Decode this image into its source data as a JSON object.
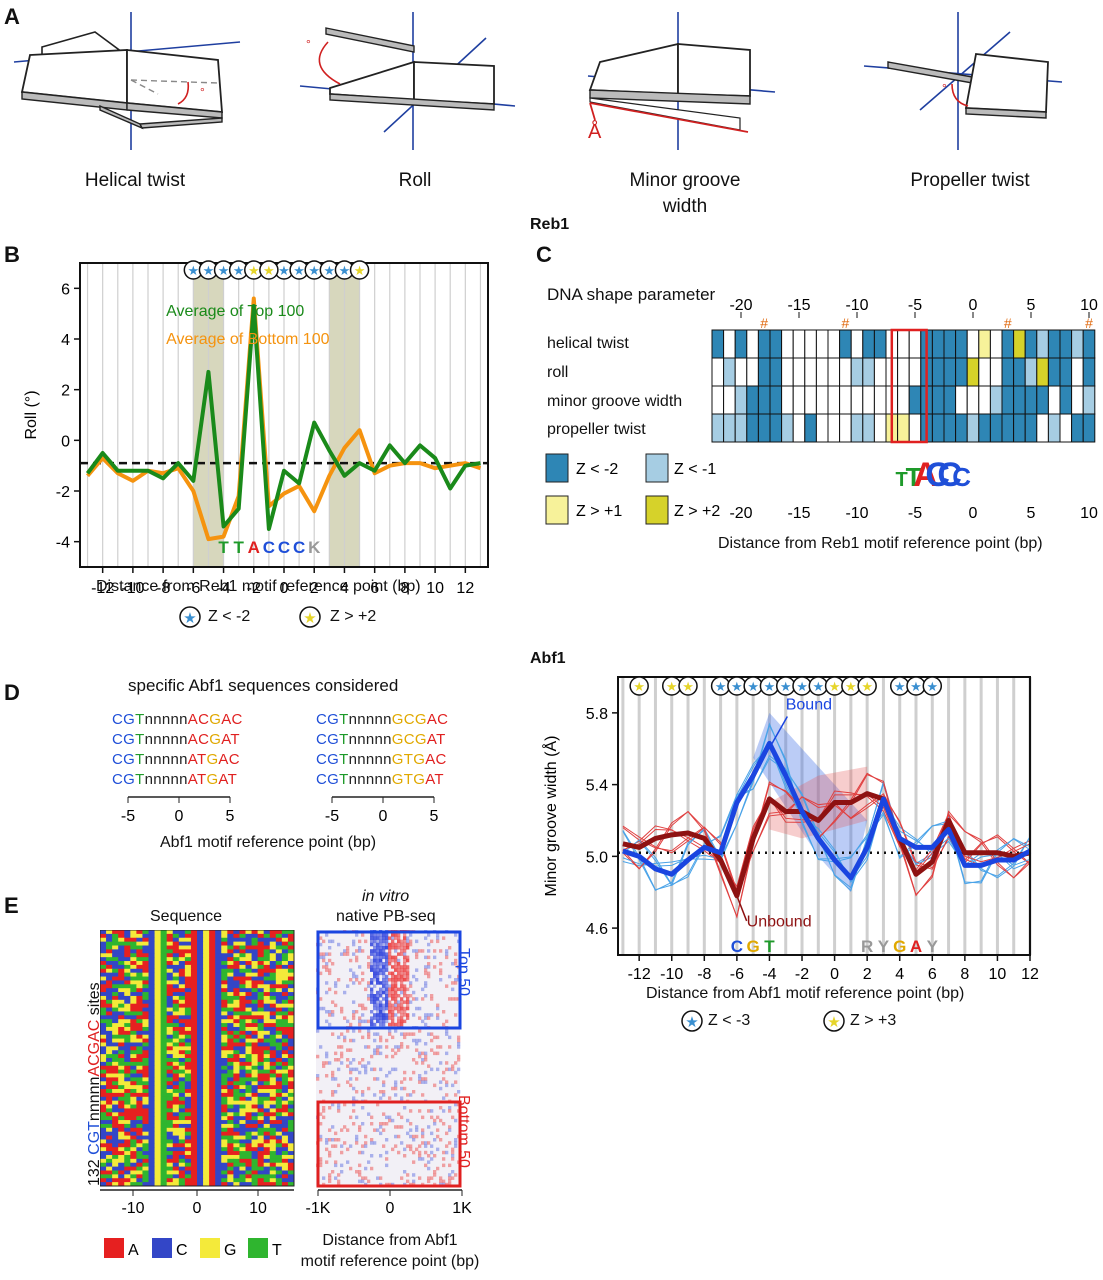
{
  "panels": {
    "A": "A",
    "B": "B",
    "C": "C",
    "D": "D",
    "E": "E"
  },
  "sections": {
    "reb1": "Reb1",
    "abf1": "Abf1"
  },
  "panelA": {
    "labels": [
      "Helical twist",
      "Roll",
      "Minor groove",
      "Propeller twist"
    ],
    "minor_groove_line2": "width",
    "degree_symbol": "°",
    "angstrom_symbol": "Å",
    "colors": {
      "axis": "#1f3fa0",
      "angle": "#d02020"
    }
  },
  "panelB": {
    "ylabel": "Roll (°)",
    "xlabel": "Distance from Reb1 motif reference point (bp)",
    "legend_top": "Average of Top 100",
    "legend_bottom": "Average of Bottom 100",
    "motif": [
      {
        "ch": "T",
        "color": "#1e9a2a"
      },
      {
        "ch": "T",
        "color": "#1e9a2a"
      },
      {
        "ch": "A",
        "color": "#e02020"
      },
      {
        "ch": "C",
        "color": "#1f4fd8"
      },
      {
        "ch": "C",
        "color": "#1f4fd8"
      },
      {
        "ch": "C",
        "color": "#1f4fd8"
      },
      {
        "ch": "K",
        "color": "#999999"
      }
    ],
    "key_low": "Z < -2",
    "key_high": "Z > +2",
    "colors": {
      "top": "#1a8a1a",
      "bottom": "#f5930f",
      "shade": "#d7d7bd"
    }
  },
  "panelC": {
    "title": "DNA shape parameter",
    "rows": [
      "helical twist",
      "roll",
      "minor groove width",
      "propeller twist"
    ],
    "xlabel": "Distance from Reb1 motif reference point (bp)",
    "hash": "#",
    "legend": [
      {
        "label": "Z < -2",
        "color": "#2e86b5"
      },
      {
        "label": "Z < -1",
        "color": "#a6cde3"
      },
      {
        "label": "Z > +1",
        "color": "#f7f29a"
      },
      {
        "label": "Z > +2",
        "color": "#d6d22a"
      }
    ],
    "logo": "TTACCC"
  },
  "panelD": {
    "title": "specific Abf1 sequences considered",
    "seq_left": [
      [
        [
          "CG",
          "c"
        ],
        [
          "T",
          "t"
        ],
        [
          "nnnnn",
          "n"
        ],
        [
          "AC",
          "a"
        ],
        [
          "G",
          "g"
        ],
        [
          "AC",
          "a"
        ]
      ],
      [
        [
          "CG",
          "c"
        ],
        [
          "T",
          "t"
        ],
        [
          "nnnnn",
          "n"
        ],
        [
          "AC",
          "a"
        ],
        [
          "G",
          "g"
        ],
        [
          "AT",
          "a"
        ]
      ],
      [
        [
          "CG",
          "c"
        ],
        [
          "T",
          "t"
        ],
        [
          "nnnnn",
          "n"
        ],
        [
          "AT",
          "a"
        ],
        [
          "G",
          "g"
        ],
        [
          "AC",
          "a"
        ]
      ],
      [
        [
          "CG",
          "c"
        ],
        [
          "T",
          "t"
        ],
        [
          "nnnnn",
          "n"
        ],
        [
          "AT",
          "a"
        ],
        [
          "G",
          "g"
        ],
        [
          "AT",
          "a"
        ]
      ]
    ],
    "seq_right": [
      [
        [
          "CG",
          "c"
        ],
        [
          "T",
          "t"
        ],
        [
          "nnnnn",
          "n"
        ],
        [
          "GC",
          "g"
        ],
        [
          "G",
          "g"
        ],
        [
          "AC",
          "a"
        ]
      ],
      [
        [
          "CG",
          "c"
        ],
        [
          "T",
          "t"
        ],
        [
          "nnnnn",
          "n"
        ],
        [
          "GC",
          "g"
        ],
        [
          "G",
          "g"
        ],
        [
          "AT",
          "a"
        ]
      ],
      [
        [
          "CG",
          "c"
        ],
        [
          "T",
          "t"
        ],
        [
          "nnnnn",
          "n"
        ],
        [
          "GT",
          "g"
        ],
        [
          "G",
          "g"
        ],
        [
          "AC",
          "a"
        ]
      ],
      [
        [
          "CG",
          "c"
        ],
        [
          "T",
          "t"
        ],
        [
          "nnnnn",
          "n"
        ],
        [
          "GT",
          "g"
        ],
        [
          "G",
          "g"
        ],
        [
          "AT",
          "a"
        ]
      ]
    ],
    "xlabel": "Abf1 motif reference point (bp)",
    "ticks": [
      "-5",
      "0",
      "5"
    ]
  },
  "panelDplot": {
    "ylabel": "Minor groove width (Å)",
    "xlabel": "Distance from Abf1 motif reference point (bp)",
    "bound": "Bound",
    "unbound": "Unbound",
    "key_low": "Z < -3",
    "key_high": "Z > +3",
    "motif_left": [
      {
        "ch": "C",
        "color": "#1f4fd8"
      },
      {
        "ch": "G",
        "color": "#e0a800"
      },
      {
        "ch": "T",
        "color": "#1e9a2a"
      }
    ],
    "motif_right": [
      {
        "ch": "R",
        "color": "#999999"
      },
      {
        "ch": "Y",
        "color": "#999999"
      },
      {
        "ch": "G",
        "color": "#e0a800"
      },
      {
        "ch": "A",
        "color": "#e02020"
      },
      {
        "ch": "Y",
        "color": "#999999"
      }
    ],
    "colors": {
      "bound": "#1a45e0",
      "unbound": "#8e1212"
    }
  },
  "panelE": {
    "seq_title": "Sequence",
    "invitro": "in vitro",
    "pbseq": "native PB-seq",
    "side_label_pre": "132 ",
    "side_label_cgt": "CGT",
    "side_label_n": "nnnnn",
    "side_label_acgac": "ACGAC",
    "side_label_post": " sites",
    "top50": "Top 50",
    "bottom50": "Bottom 50",
    "xticks_left": [
      "-10",
      "0",
      "10"
    ],
    "xticks_right": [
      "-1K",
      "0",
      "1K"
    ],
    "xlabel_1": "Distance from Abf1",
    "xlabel_2": "motif reference point (bp)",
    "legend": [
      {
        "label": "A",
        "color": "#e62020"
      },
      {
        "label": "C",
        "color": "#3346c7"
      },
      {
        "label": "G",
        "color": "#f4ea3a"
      },
      {
        "label": "T",
        "color": "#2fb52f"
      }
    ]
  },
  "chart_data": [
    {
      "type": "line",
      "x": [
        -13,
        -12,
        -11,
        -10,
        -9,
        -8,
        -7,
        -6,
        -5,
        -4,
        -3,
        -2,
        -1,
        0,
        1,
        2,
        3,
        4,
        5,
        6,
        7,
        8,
        9,
        10,
        11,
        12,
        13
      ],
      "series": [
        {
          "name": "Average of Top 100",
          "values": [
            -1.3,
            -0.5,
            -1.2,
            -1.2,
            -1.2,
            -1.5,
            -0.9,
            -1.6,
            2.7,
            -3.4,
            -2.7,
            5.3,
            -3.5,
            -1.2,
            -1.7,
            0.7,
            -0.4,
            -1.4,
            -0.9,
            -1.2,
            -0.2,
            -0.9,
            -0.2,
            -0.7,
            -1.9,
            -1.0,
            -0.9
          ]
        },
        {
          "name": "Average of Bottom 100",
          "values": [
            -1.4,
            -0.7,
            -1.3,
            -1.6,
            -1.2,
            -1.3,
            -1.1,
            -2.0,
            -3.9,
            -3.8,
            -2.2,
            5.6,
            -2.6,
            -2.1,
            -1.8,
            -2.8,
            -1.4,
            -0.3,
            0.4,
            -1.3,
            -1.0,
            -0.9,
            -0.9,
            -1.1,
            -1.0,
            -0.9,
            -1.1
          ]
        }
      ],
      "xlabel": "Distance from Reb1 motif reference point (bp)",
      "ylabel": "Roll (°)",
      "ylim": [
        -5,
        7
      ],
      "xlim": [
        -13.5,
        13.5
      ],
      "baseline": -0.9,
      "shaded": [
        [
          -6,
          -4
        ],
        [
          3,
          5
        ]
      ],
      "star_low_x": [
        -6,
        -5,
        -4,
        -3,
        0,
        1,
        2,
        3,
        4
      ],
      "star_high_x": [
        -2,
        -1,
        5
      ]
    },
    {
      "type": "line",
      "x": [
        -13,
        -12,
        -11,
        -10,
        -9,
        -8,
        -7,
        -6,
        -5,
        -4,
        -3,
        -2,
        -1,
        0,
        1,
        2,
        3,
        4,
        5,
        6,
        7,
        8,
        9,
        10,
        11,
        12
      ],
      "series": [
        {
          "name": "Bound",
          "values": [
            5.03,
            5.0,
            4.93,
            4.9,
            4.98,
            5.05,
            5.02,
            5.3,
            5.45,
            5.63,
            5.45,
            5.25,
            5.1,
            4.98,
            4.88,
            5.05,
            5.32,
            5.1,
            5.05,
            5.05,
            5.15,
            4.95,
            4.95,
            4.98,
            4.98,
            5.03
          ]
        },
        {
          "name": "Unbound",
          "values": [
            5.07,
            5.05,
            5.1,
            5.12,
            5.13,
            5.1,
            4.98,
            4.78,
            5.1,
            5.32,
            5.25,
            5.25,
            5.2,
            5.3,
            5.3,
            5.35,
            5.32,
            5.1,
            4.9,
            4.97,
            5.2,
            5.02,
            5.02,
            5.02,
            5.0,
            5.02
          ]
        }
      ],
      "xlabel": "Distance from Abf1 motif reference point (bp)",
      "ylabel": "Minor groove width (Å)",
      "ylim": [
        4.45,
        6.0
      ],
      "baseline": 5.02,
      "yticks": [
        4.6,
        5.0,
        5.4,
        5.8
      ],
      "star_low_x": [
        -7,
        -6,
        -5,
        -4,
        -3,
        -2,
        -1,
        4,
        5,
        6
      ],
      "star_high_x": [
        -12,
        -10,
        -9,
        0,
        1,
        2
      ]
    }
  ]
}
